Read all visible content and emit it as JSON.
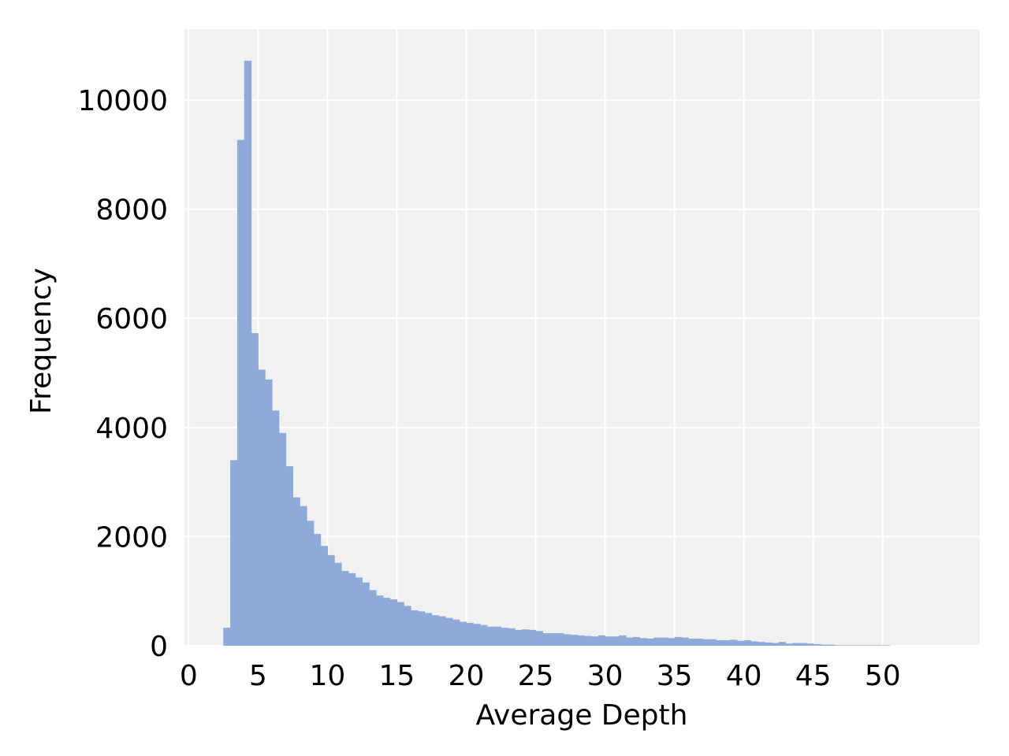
{
  "chart_data": {
    "type": "bar",
    "title": "",
    "xlabel": "Average Depth",
    "ylabel": "Frequency",
    "xlim": [
      -0.3,
      57.0
    ],
    "ylim": [
      0,
      11300
    ],
    "grid": true,
    "bin_width": 0.5,
    "x_ticks": [
      0,
      5,
      10,
      15,
      20,
      25,
      30,
      35,
      40,
      45,
      50
    ],
    "y_ticks": [
      0,
      2000,
      4000,
      6000,
      8000,
      10000
    ],
    "bins": [
      {
        "x": 2.5,
        "y": 330
      },
      {
        "x": 3.0,
        "y": 3400
      },
      {
        "x": 3.5,
        "y": 9270
      },
      {
        "x": 4.0,
        "y": 10720
      },
      {
        "x": 4.5,
        "y": 5730
      },
      {
        "x": 5.0,
        "y": 5060
      },
      {
        "x": 5.5,
        "y": 4880
      },
      {
        "x": 6.0,
        "y": 4310
      },
      {
        "x": 6.5,
        "y": 3900
      },
      {
        "x": 7.0,
        "y": 3290
      },
      {
        "x": 7.5,
        "y": 2720
      },
      {
        "x": 8.0,
        "y": 2560
      },
      {
        "x": 8.5,
        "y": 2290
      },
      {
        "x": 9.0,
        "y": 2050
      },
      {
        "x": 9.5,
        "y": 1830
      },
      {
        "x": 10.0,
        "y": 1660
      },
      {
        "x": 10.5,
        "y": 1520
      },
      {
        "x": 11.0,
        "y": 1370
      },
      {
        "x": 11.5,
        "y": 1330
      },
      {
        "x": 12.0,
        "y": 1250
      },
      {
        "x": 12.5,
        "y": 1160
      },
      {
        "x": 13.0,
        "y": 1020
      },
      {
        "x": 13.5,
        "y": 920
      },
      {
        "x": 14.0,
        "y": 880
      },
      {
        "x": 14.5,
        "y": 850
      },
      {
        "x": 15.0,
        "y": 800
      },
      {
        "x": 15.5,
        "y": 730
      },
      {
        "x": 16.0,
        "y": 650
      },
      {
        "x": 16.5,
        "y": 630
      },
      {
        "x": 17.0,
        "y": 600
      },
      {
        "x": 17.5,
        "y": 560
      },
      {
        "x": 18.0,
        "y": 540
      },
      {
        "x": 18.5,
        "y": 510
      },
      {
        "x": 19.0,
        "y": 480
      },
      {
        "x": 19.5,
        "y": 440
      },
      {
        "x": 20.0,
        "y": 420
      },
      {
        "x": 20.5,
        "y": 400
      },
      {
        "x": 21.0,
        "y": 380
      },
      {
        "x": 21.5,
        "y": 350
      },
      {
        "x": 22.0,
        "y": 350
      },
      {
        "x": 22.5,
        "y": 330
      },
      {
        "x": 23.0,
        "y": 320
      },
      {
        "x": 23.5,
        "y": 290
      },
      {
        "x": 24.0,
        "y": 300
      },
      {
        "x": 24.5,
        "y": 290
      },
      {
        "x": 25.0,
        "y": 270
      },
      {
        "x": 25.5,
        "y": 230
      },
      {
        "x": 26.0,
        "y": 230
      },
      {
        "x": 26.5,
        "y": 230
      },
      {
        "x": 27.0,
        "y": 210
      },
      {
        "x": 27.5,
        "y": 200
      },
      {
        "x": 28.0,
        "y": 190
      },
      {
        "x": 28.5,
        "y": 180
      },
      {
        "x": 29.0,
        "y": 170
      },
      {
        "x": 29.5,
        "y": 190
      },
      {
        "x": 30.0,
        "y": 170
      },
      {
        "x": 30.5,
        "y": 170
      },
      {
        "x": 31.0,
        "y": 190
      },
      {
        "x": 31.5,
        "y": 150
      },
      {
        "x": 32.0,
        "y": 160
      },
      {
        "x": 32.5,
        "y": 140
      },
      {
        "x": 33.0,
        "y": 130
      },
      {
        "x": 33.5,
        "y": 150
      },
      {
        "x": 34.0,
        "y": 150
      },
      {
        "x": 34.5,
        "y": 140
      },
      {
        "x": 35.0,
        "y": 160
      },
      {
        "x": 35.5,
        "y": 150
      },
      {
        "x": 36.0,
        "y": 130
      },
      {
        "x": 36.5,
        "y": 130
      },
      {
        "x": 37.0,
        "y": 120
      },
      {
        "x": 37.5,
        "y": 120
      },
      {
        "x": 38.0,
        "y": 100
      },
      {
        "x": 38.5,
        "y": 100
      },
      {
        "x": 39.0,
        "y": 110
      },
      {
        "x": 39.5,
        "y": 90
      },
      {
        "x": 40.0,
        "y": 100
      },
      {
        "x": 40.5,
        "y": 80
      },
      {
        "x": 41.0,
        "y": 70
      },
      {
        "x": 41.5,
        "y": 60
      },
      {
        "x": 42.0,
        "y": 50
      },
      {
        "x": 42.5,
        "y": 70
      },
      {
        "x": 43.0,
        "y": 40
      },
      {
        "x": 43.5,
        "y": 50
      },
      {
        "x": 44.0,
        "y": 50
      },
      {
        "x": 44.5,
        "y": 40
      },
      {
        "x": 45.0,
        "y": 30
      },
      {
        "x": 45.5,
        "y": 20
      },
      {
        "x": 46.0,
        "y": 20
      },
      {
        "x": 46.5,
        "y": 10
      },
      {
        "x": 47.0,
        "y": 10
      },
      {
        "x": 47.5,
        "y": 10
      },
      {
        "x": 48.0,
        "y": 10
      },
      {
        "x": 48.5,
        "y": 10
      },
      {
        "x": 49.0,
        "y": 10
      },
      {
        "x": 49.5,
        "y": 10
      },
      {
        "x": 50.0,
        "y": 10
      }
    ]
  },
  "colors": {
    "bar": "#8eaad8",
    "plot_bg": "#f1f1f1",
    "grid": "#ffffff",
    "text": "#000000"
  }
}
